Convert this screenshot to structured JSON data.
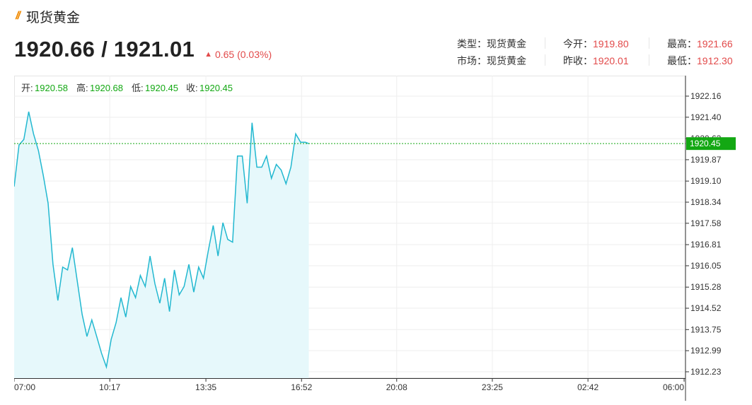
{
  "header": {
    "title_icon": "double-slash-icon",
    "title": "现货黄金",
    "price": "1920.66 / 1921.01",
    "change_arrow": "up-arrow-icon",
    "change": "0.65 (0.03%)"
  },
  "stats": {
    "type_label": "类型：",
    "type_value": "现货黄金",
    "market_label": "市场：",
    "market_value": "现货黄金",
    "open_label": "今开：",
    "open_value": "1919.80",
    "prev_close_label": "昨收：",
    "prev_close_value": "1920.01",
    "high_label": "最高：",
    "high_value": "1921.66",
    "low_label": "最低：",
    "low_value": "1912.30"
  },
  "ohlc": {
    "open_label": "开:",
    "open_value": "1920.58",
    "high_label": "高:",
    "high_value": "1920.68",
    "low_label": "低:",
    "low_value": "1920.45",
    "close_label": "收:",
    "close_value": "1920.45"
  },
  "colors": {
    "line": "#22b8d0",
    "fill": "#e6f8fb",
    "current": "#13a813",
    "red": "#e24a4a"
  },
  "chart_data": {
    "type": "area",
    "title": "",
    "xlabel": "",
    "ylabel": "",
    "x_ticks": [
      "07:00",
      "10:17",
      "13:35",
      "16:52",
      "20:08",
      "23:25",
      "02:42",
      "06:00"
    ],
    "y_ticks": [
      "1922.16",
      "1921.40",
      "1920.63",
      "1919.87",
      "1919.10",
      "1918.34",
      "1917.58",
      "1916.81",
      "1916.05",
      "1915.28",
      "1914.52",
      "1913.75",
      "1912.99",
      "1912.23"
    ],
    "ylim": [
      1912.23,
      1922.16
    ],
    "current_value": "1920.45",
    "grid": true,
    "series": [
      {
        "x": [
          "07:00",
          "07:10",
          "07:20",
          "07:30",
          "07:40",
          "07:50",
          "08:00",
          "08:10",
          "08:20",
          "08:30",
          "08:40",
          "08:50",
          "09:00",
          "09:10",
          "09:20",
          "09:30",
          "09:40",
          "09:50",
          "10:00",
          "10:10",
          "10:20",
          "10:30",
          "10:40",
          "10:50",
          "11:00",
          "11:10",
          "11:20",
          "11:30",
          "11:40",
          "11:50",
          "12:00",
          "12:10",
          "12:20",
          "12:30",
          "12:40",
          "12:50",
          "13:00",
          "13:10",
          "13:20",
          "13:30",
          "13:40",
          "13:50",
          "14:00",
          "14:10",
          "14:20",
          "14:30",
          "14:40",
          "14:50",
          "15:00",
          "15:10",
          "15:20",
          "15:30",
          "15:40",
          "15:50",
          "16:00",
          "16:10",
          "16:20",
          "16:30",
          "16:40",
          "16:50",
          "17:00",
          "17:07"
        ],
        "values": [
          1918.9,
          1920.4,
          1920.6,
          1921.6,
          1920.8,
          1920.2,
          1919.3,
          1918.3,
          1916.1,
          1914.8,
          1916.0,
          1915.9,
          1916.7,
          1915.5,
          1914.3,
          1913.5,
          1914.1,
          1913.5,
          1912.9,
          1912.4,
          1913.4,
          1914.0,
          1914.9,
          1914.2,
          1915.3,
          1914.9,
          1915.7,
          1915.3,
          1916.4,
          1915.4,
          1914.7,
          1915.6,
          1914.4,
          1915.9,
          1915.0,
          1915.3,
          1916.1,
          1915.1,
          1916.0,
          1915.6,
          1916.6,
          1917.5,
          1916.4,
          1917.6,
          1917.0,
          1916.9,
          1920.0,
          1920.0,
          1918.3,
          1921.2,
          1919.6,
          1919.6,
          1920.0,
          1919.2,
          1919.7,
          1919.5,
          1919.0,
          1919.6,
          1920.8,
          1920.5,
          1920.5,
          1920.45
        ]
      }
    ]
  }
}
